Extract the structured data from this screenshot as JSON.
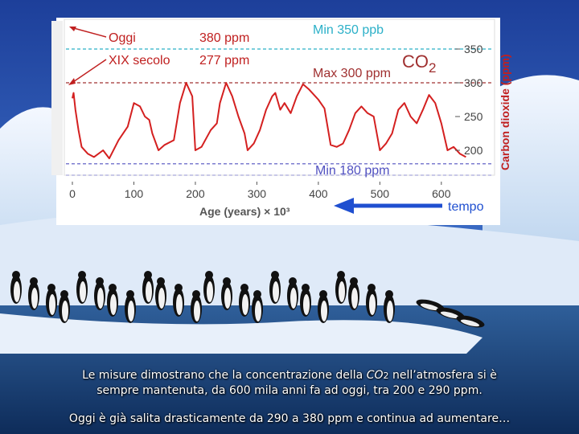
{
  "chart_data": {
    "type": "line",
    "xlabel": "Age (years) × 10³",
    "ylabel": "Carbon dioxide (ppm)",
    "xlim": [
      -10,
      650
    ],
    "ylim": [
      170,
      370
    ],
    "x_ticks": [
      0,
      100,
      200,
      300,
      400,
      500,
      600
    ],
    "y_ticks": [
      200,
      250,
      300,
      350
    ],
    "series": [
      {
        "name": "CO2",
        "color": "#d42020",
        "x": [
          0,
          2,
          5,
          10,
          15,
          25,
          35,
          50,
          60,
          75,
          90,
          100,
          110,
          118,
          125,
          130,
          140,
          150,
          165,
          175,
          185,
          195,
          200,
          210,
          225,
          235,
          240,
          250,
          260,
          270,
          280,
          285,
          295,
          305,
          315,
          325,
          330,
          338,
          345,
          355,
          365,
          375,
          385,
          395,
          400,
          410,
          420,
          430,
          440,
          450,
          460,
          470,
          480,
          490,
          500,
          510,
          520,
          530,
          540,
          550,
          560,
          570,
          580,
          590,
          600,
          610,
          620,
          630,
          640
        ],
        "values": [
          277,
          285,
          260,
          230,
          205,
          195,
          190,
          200,
          188,
          215,
          235,
          270,
          265,
          250,
          245,
          225,
          200,
          208,
          215,
          270,
          300,
          280,
          200,
          205,
          230,
          240,
          270,
          300,
          280,
          250,
          225,
          200,
          210,
          230,
          260,
          280,
          285,
          260,
          270,
          255,
          280,
          298,
          290,
          280,
          275,
          262,
          208,
          205,
          210,
          230,
          255,
          265,
          255,
          250,
          200,
          210,
          225,
          260,
          270,
          250,
          240,
          260,
          282,
          270,
          240,
          200,
          205,
          195,
          190
        ]
      }
    ],
    "hlines": [
      {
        "y": 350,
        "label": "Min 350 ppb",
        "color": "#2bb0c8"
      },
      {
        "y": 300,
        "label": "Max 300 ppm",
        "color": "#a03030"
      },
      {
        "y": 180,
        "label": "Min 180 ppm",
        "color": "#5050c0"
      }
    ],
    "annotations": {
      "today_label": "Oggi",
      "today_value": "380 ppm",
      "xix_label": "XIX secolo",
      "xix_value": "277 ppm",
      "co2_label_main": "CO",
      "co2_label_sub": "2",
      "time_label": "tempo"
    }
  },
  "caption": {
    "line1_a": "Le misure dimostrano che la concentrazione della ",
    "co2_main": "CO",
    "co2_sub": "2",
    "line1_b": " nell’atmosfera si è",
    "line2": "sempre mantenuta, da 600 mila anni fa ad oggi, tra 200 e 290 ppm.",
    "line3": "Oggi è già salita drasticamente da 290 a 380 ppm e continua ad aumentare…"
  },
  "colors": {
    "panel": "#ffffff",
    "line": "#d42020",
    "arrow": "#1f4fd0",
    "axis_text": "#444444"
  }
}
